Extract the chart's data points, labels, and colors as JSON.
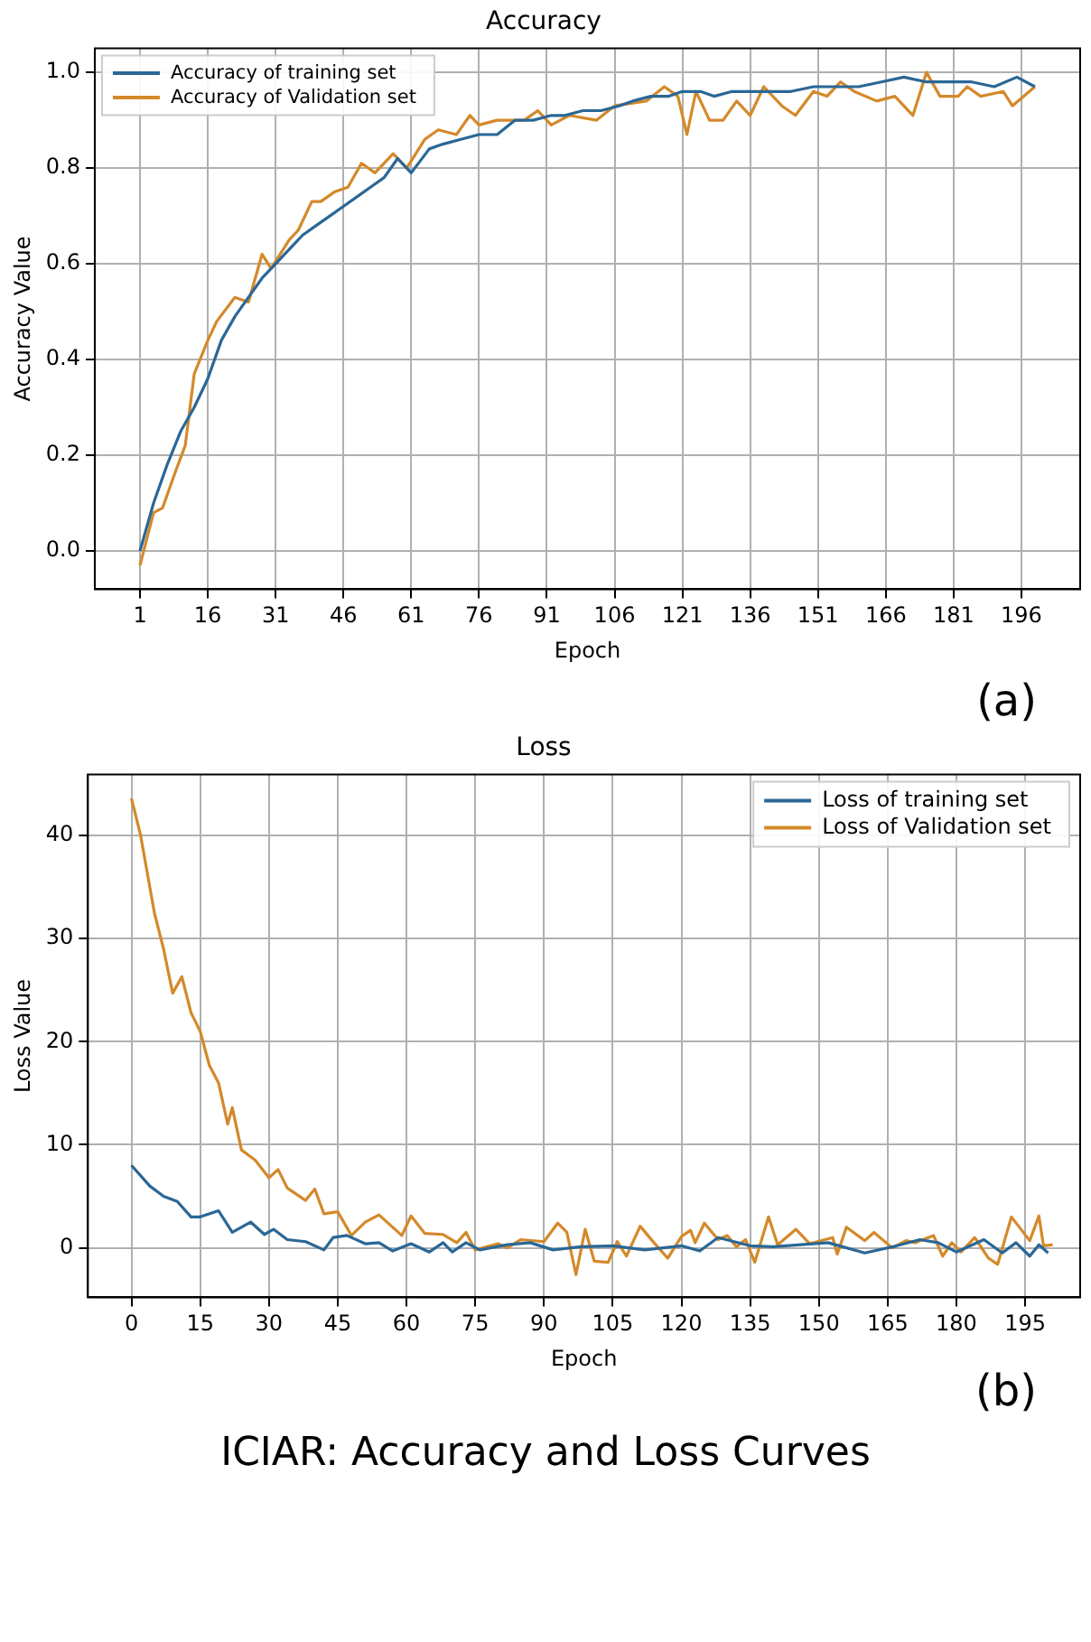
{
  "chart_data": [
    {
      "type": "line",
      "title": "Accuracy",
      "xlabel": "Epoch",
      "ylabel": "Accuracy Value",
      "annotations": [
        "(a)"
      ],
      "xlim": [
        -9,
        209
      ],
      "xticks": [
        1,
        16,
        31,
        46,
        61,
        76,
        91,
        106,
        121,
        136,
        151,
        166,
        181,
        196
      ],
      "ylim": [
        -0.08,
        1.05
      ],
      "yticks": [
        {
          "value": 0,
          "label": "0.0"
        },
        0.2,
        0.4,
        0.6,
        0.8,
        {
          "value": 1,
          "label": "1.0"
        }
      ],
      "grid": true,
      "legend": "top left",
      "marker": "none",
      "line_style": "solid",
      "series": [
        {
          "name": "Accuracy of training set",
          "color": "#2a6796",
          "x": [
            1,
            4,
            7,
            10,
            13,
            16,
            19,
            22,
            25,
            28,
            31,
            34,
            37,
            40,
            43,
            46,
            49,
            52,
            55,
            58,
            61,
            65,
            68,
            72,
            76,
            80,
            84,
            88,
            92,
            95,
            99,
            103,
            107,
            110,
            114,
            118,
            121,
            125,
            128,
            132,
            136,
            140,
            145,
            150,
            155,
            160,
            165,
            170,
            175,
            180,
            185,
            190,
            195,
            199
          ],
          "values": [
            0.0,
            0.1,
            0.18,
            0.25,
            0.3,
            0.36,
            0.44,
            0.49,
            0.53,
            0.57,
            0.6,
            0.63,
            0.66,
            0.68,
            0.7,
            0.72,
            0.74,
            0.76,
            0.78,
            0.82,
            0.79,
            0.84,
            0.85,
            0.86,
            0.87,
            0.87,
            0.9,
            0.9,
            0.91,
            0.91,
            0.92,
            0.92,
            0.93,
            0.94,
            0.95,
            0.95,
            0.96,
            0.96,
            0.95,
            0.96,
            0.96,
            0.96,
            0.96,
            0.97,
            0.97,
            0.97,
            0.98,
            0.99,
            0.98,
            0.98,
            0.98,
            0.97,
            0.99,
            0.97
          ]
        },
        {
          "name": "Accuracy of Validation set",
          "color": "#d4892a",
          "x": [
            1,
            4,
            6,
            9,
            11,
            13,
            16,
            18,
            22,
            25,
            28,
            30,
            34,
            36,
            39,
            41,
            44,
            47,
            50,
            53,
            57,
            60,
            64,
            67,
            71,
            74,
            76,
            80,
            86,
            89,
            92,
            96,
            102,
            106,
            113,
            117,
            120,
            122,
            124,
            127,
            130,
            133,
            136,
            139,
            143,
            146,
            150,
            153,
            156,
            159,
            164,
            168,
            172,
            175,
            178,
            182,
            184,
            187,
            192,
            194,
            199
          ],
          "values": [
            -0.03,
            0.08,
            0.09,
            0.17,
            0.22,
            0.37,
            0.44,
            0.48,
            0.53,
            0.52,
            0.62,
            0.59,
            0.65,
            0.67,
            0.73,
            0.73,
            0.75,
            0.76,
            0.81,
            0.79,
            0.83,
            0.8,
            0.86,
            0.88,
            0.87,
            0.91,
            0.89,
            0.9,
            0.9,
            0.92,
            0.89,
            0.91,
            0.9,
            0.93,
            0.94,
            0.97,
            0.95,
            0.87,
            0.96,
            0.9,
            0.9,
            0.94,
            0.91,
            0.97,
            0.93,
            0.91,
            0.96,
            0.95,
            0.98,
            0.96,
            0.94,
            0.95,
            0.91,
            1.0,
            0.95,
            0.95,
            0.97,
            0.95,
            0.96,
            0.93,
            0.97
          ]
        }
      ]
    },
    {
      "type": "line",
      "title": "Loss",
      "xlabel": "Epoch",
      "ylabel": "Loss Value",
      "annotations": [
        "(b)",
        "ICIAR: Accuracy  and Loss Curves"
      ],
      "xlim": [
        -9.5,
        207
      ],
      "xticks": [
        0,
        15,
        30,
        45,
        60,
        75,
        90,
        105,
        120,
        135,
        150,
        165,
        180,
        195
      ],
      "ylim": [
        -4.8,
        45.9
      ],
      "yticks": [
        0,
        10,
        20,
        30,
        40
      ],
      "grid": true,
      "legend": "top right",
      "marker": "none",
      "line_style": "solid",
      "series": [
        {
          "name": "Loss of training set",
          "color": "#2a6796",
          "x": [
            0,
            4,
            7,
            10,
            13,
            15,
            19,
            22,
            26,
            29,
            31,
            34,
            38,
            42,
            44,
            47,
            51,
            54,
            57,
            61,
            65,
            68,
            70,
            73,
            76,
            82,
            87,
            92,
            98,
            105,
            112,
            120,
            124,
            128,
            135,
            140,
            146,
            152,
            160,
            167,
            172,
            176,
            180,
            186,
            190,
            193,
            196,
            198,
            200
          ],
          "values": [
            8,
            6,
            5,
            4.5,
            3,
            3,
            3.6,
            1.5,
            2.5,
            1.3,
            1.8,
            0.8,
            0.6,
            -0.2,
            1,
            1.2,
            0.4,
            0.5,
            -0.3,
            0.4,
            -0.4,
            0.5,
            -0.4,
            0.5,
            -0.2,
            0.3,
            0.5,
            -0.2,
            0.1,
            0.2,
            -0.2,
            0.2,
            -0.3,
            1,
            0.2,
            0.1,
            0.3,
            0.5,
            -0.5,
            0.2,
            0.8,
            0.5,
            -0.4,
            0.8,
            -0.5,
            0.5,
            -0.8,
            0.3,
            -0.5
          ]
        },
        {
          "name": "Loss of Validation set",
          "color": "#d4892a",
          "x": [
            0,
            2,
            5,
            7,
            9,
            11,
            13,
            15,
            17,
            19,
            21,
            22,
            24,
            27,
            30,
            32,
            34,
            38,
            40,
            42,
            45,
            48,
            51,
            54,
            59,
            61,
            64,
            68,
            71,
            73,
            75,
            80,
            82,
            85,
            90,
            93,
            95,
            97,
            99,
            101,
            104,
            106,
            108,
            111,
            114,
            117,
            120,
            122,
            123,
            125,
            128,
            130,
            132,
            134,
            136,
            139,
            141,
            145,
            148,
            153,
            154,
            156,
            160,
            162,
            166,
            169,
            171,
            175,
            177,
            179,
            181,
            184,
            187,
            189,
            192,
            196,
            198,
            199,
            201
          ],
          "values": [
            43.6,
            40,
            32.5,
            29,
            24.7,
            26.3,
            22.8,
            21,
            17.7,
            16,
            12,
            13.6,
            9.5,
            8.5,
            6.8,
            7.6,
            5.8,
            4.6,
            5.7,
            3.3,
            3.5,
            1.2,
            2.5,
            3.2,
            1.2,
            3.1,
            1.4,
            1.3,
            0.5,
            1.5,
            -0.2,
            0.4,
            0,
            0.8,
            0.6,
            2.4,
            1.5,
            -2.6,
            1.8,
            -1.3,
            -1.4,
            0.6,
            -0.8,
            2.1,
            0.5,
            -1,
            1.1,
            1.7,
            0.5,
            2.4,
            0.8,
            1.2,
            0.1,
            0.8,
            -1.4,
            3,
            0.3,
            1.8,
            0.4,
            1,
            -0.6,
            2,
            0.7,
            1.5,
            0,
            0.7,
            0.5,
            1.2,
            -0.8,
            0.5,
            -0.4,
            1,
            -1,
            -1.6,
            3,
            0.7,
            3.1,
            0.2,
            0.3
          ]
        }
      ]
    }
  ]
}
